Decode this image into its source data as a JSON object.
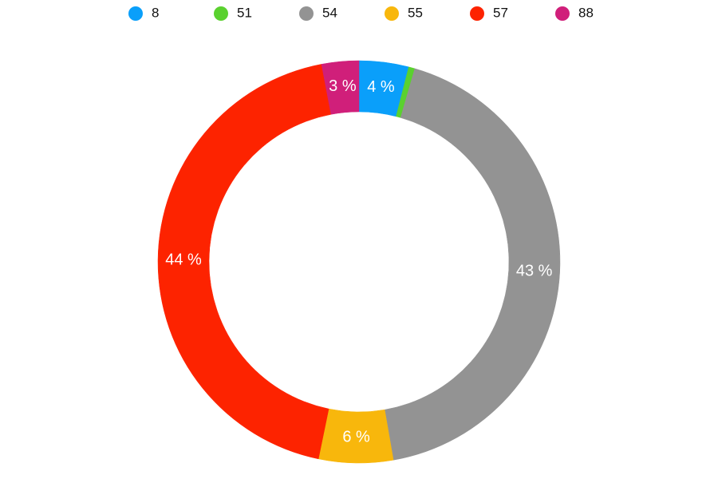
{
  "chart_data": {
    "type": "donut",
    "categories": [
      "8",
      "51",
      "54",
      "55",
      "57",
      "88"
    ],
    "values": [
      4,
      0.5,
      43,
      6,
      44,
      3
    ],
    "value_labels": [
      "4 %",
      null,
      "43 %",
      "6 %",
      "44 %",
      "3 %"
    ],
    "colors": [
      "#0a9ffa",
      "#5ad12f",
      "#939393",
      "#f8b70c",
      "#fd2300",
      "#d01f7a"
    ],
    "legend": "top"
  }
}
